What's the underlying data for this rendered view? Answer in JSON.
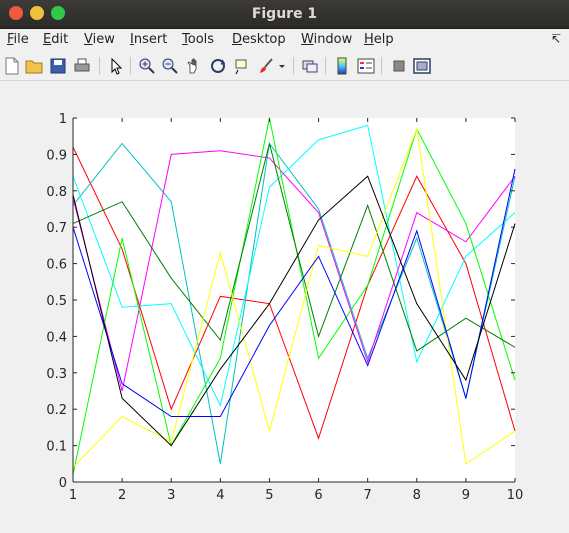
{
  "window": {
    "title": "Figure 1"
  },
  "menu": {
    "items": [
      {
        "u": "F",
        "rest": "ile"
      },
      {
        "u": "E",
        "rest": "dit"
      },
      {
        "u": "V",
        "rest": "iew"
      },
      {
        "u": "I",
        "rest": "nsert"
      },
      {
        "u": "T",
        "rest": "ools"
      },
      {
        "u": "D",
        "rest": "esktop"
      },
      {
        "u": "W",
        "rest": "indow"
      },
      {
        "u": "H",
        "rest": "elp"
      }
    ]
  },
  "colors": {
    "axes_bg": "#ffffff",
    "figure_bg": "#f0f0f0"
  },
  "chart_data": {
    "type": "line",
    "xlim": [
      1,
      10
    ],
    "ylim": [
      0,
      1
    ],
    "xticks": [
      "1",
      "2",
      "3",
      "4",
      "5",
      "6",
      "7",
      "8",
      "9",
      "10"
    ],
    "yticks": [
      "0",
      "0.1",
      "0.2",
      "0.3",
      "0.4",
      "0.5",
      "0.6",
      "0.7",
      "0.8",
      "0.9",
      "1"
    ],
    "x": [
      1,
      2,
      3,
      4,
      5,
      6,
      7,
      8,
      9,
      10
    ],
    "series": [
      {
        "name": "red",
        "color": "#ff0000",
        "values": [
          0.92,
          0.64,
          0.2,
          0.51,
          0.49,
          0.12,
          0.54,
          0.84,
          0.6,
          0.14
        ]
      },
      {
        "name": "teal",
        "color": "#00bfbf",
        "values": [
          0.76,
          0.93,
          0.77,
          0.05,
          0.93,
          0.75,
          0.34,
          0.67,
          0.23,
          0.84
        ]
      },
      {
        "name": "cyan",
        "color": "#00ffff",
        "values": [
          0.84,
          0.48,
          0.49,
          0.21,
          0.81,
          0.94,
          0.98,
          0.33,
          0.62,
          0.74
        ]
      },
      {
        "name": "magenta",
        "color": "#ff00ff",
        "values": [
          0.78,
          0.25,
          0.9,
          0.91,
          0.89,
          0.74,
          0.33,
          0.74,
          0.66,
          0.84
        ]
      },
      {
        "name": "green",
        "color": "#00ff00",
        "values": [
          0.02,
          0.67,
          0.1,
          0.34,
          1.0,
          0.34,
          0.54,
          0.97,
          0.71,
          0.28
        ]
      },
      {
        "name": "darkgreen",
        "color": "#008000",
        "values": [
          0.71,
          0.77,
          0.56,
          0.39,
          0.93,
          0.4,
          0.76,
          0.36,
          0.45,
          0.37
        ]
      },
      {
        "name": "yellow",
        "color": "#ffff00",
        "values": [
          0.04,
          0.18,
          0.11,
          0.63,
          0.14,
          0.65,
          0.62,
          0.97,
          0.05,
          0.14
        ]
      },
      {
        "name": "blue",
        "color": "#0000ff",
        "values": [
          0.7,
          0.27,
          0.18,
          0.18,
          0.43,
          0.62,
          0.32,
          0.69,
          0.23,
          0.86
        ]
      },
      {
        "name": "black",
        "color": "#000000",
        "values": [
          0.79,
          0.23,
          0.1,
          0.31,
          0.49,
          0.72,
          0.84,
          0.49,
          0.28,
          0.71
        ]
      }
    ]
  }
}
